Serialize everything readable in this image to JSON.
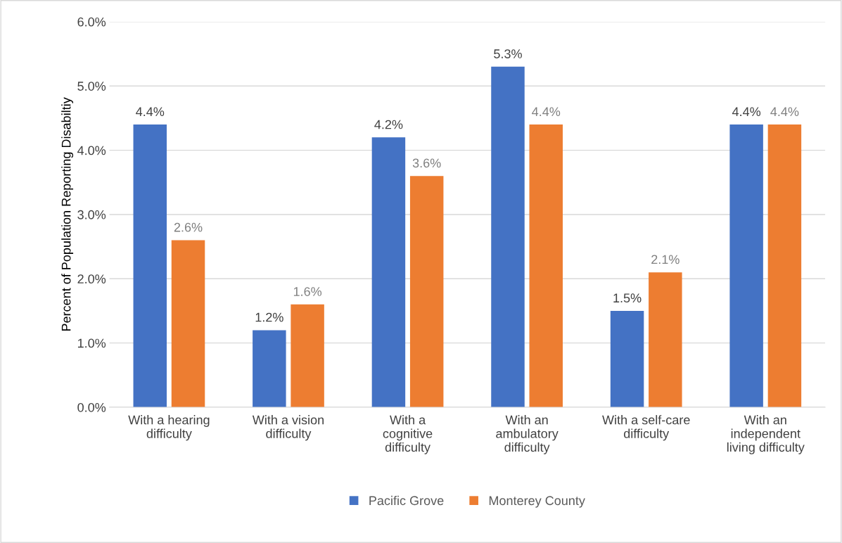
{
  "chart_data": {
    "type": "bar",
    "ylabel": "Percent of Population Reporting Disabiltiy",
    "categories": [
      "With a hearing\ndifficulty",
      "With a vision\ndifficulty",
      "With a\ncognitive\ndifficulty",
      "With an\nambulatory\ndifficulty",
      "With a self-care\ndifficulty",
      "With an\nindependent\nliving difficulty"
    ],
    "series": [
      {
        "name": "Pacific Grove",
        "color": "#4472c4",
        "values": [
          4.4,
          1.2,
          4.2,
          5.3,
          1.5,
          4.4
        ],
        "value_labels": [
          "4.4%",
          "1.2%",
          "4.2%",
          "5.3%",
          "1.5%",
          "4.4%"
        ]
      },
      {
        "name": "Monterey County",
        "color": "#ed7d31",
        "values": [
          2.6,
          1.6,
          3.6,
          4.4,
          2.1,
          4.4
        ],
        "value_labels": [
          "2.6%",
          "1.6%",
          "3.6%",
          "4.4%",
          "2.1%",
          "4.4%"
        ]
      }
    ],
    "ylim": [
      0,
      6
    ],
    "yticks": [
      {
        "value": 0,
        "label": "0.0%"
      },
      {
        "value": 1,
        "label": "1.0%"
      },
      {
        "value": 2,
        "label": "2.0%"
      },
      {
        "value": 3,
        "label": "3.0%"
      },
      {
        "value": 4,
        "label": "4.0%"
      },
      {
        "value": 5,
        "label": "5.0%"
      },
      {
        "value": 6,
        "label": "6.0%"
      }
    ],
    "grid": "y",
    "legend": "bottom"
  }
}
